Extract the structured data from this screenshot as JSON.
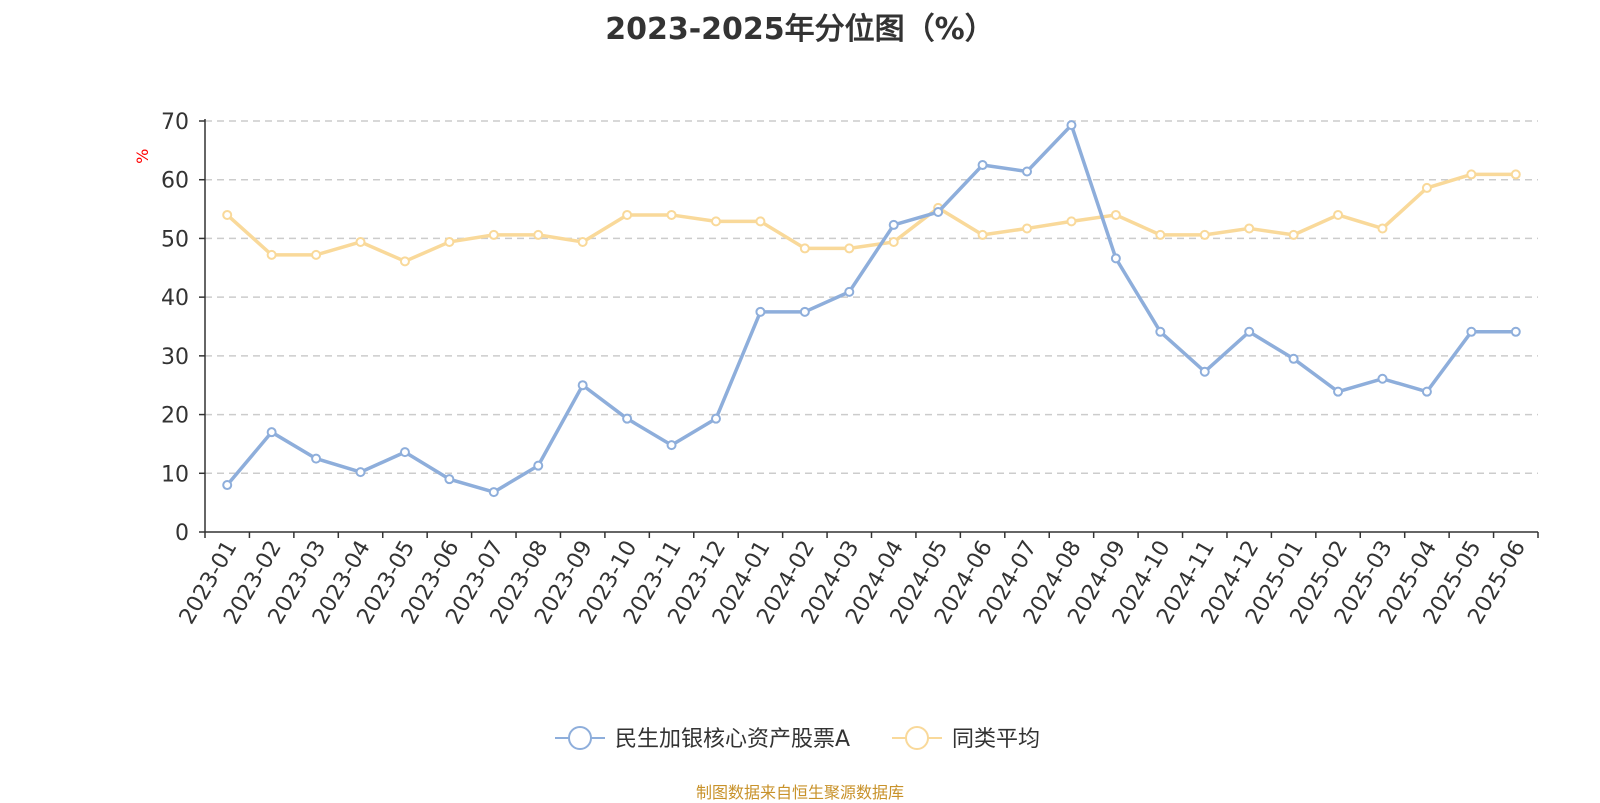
{
  "chart_data": {
    "type": "line",
    "title": "2023-2025年分位图（%）",
    "ylabel": "%",
    "ylim": [
      0,
      70
    ],
    "yticks": [
      0,
      10,
      20,
      30,
      40,
      50,
      60,
      70
    ],
    "grid": true,
    "legend_position": "bottom",
    "categories": [
      "2023-01",
      "2023-02",
      "2023-03",
      "2023-04",
      "2023-05",
      "2023-06",
      "2023-07",
      "2023-08",
      "2023-09",
      "2023-10",
      "2023-11",
      "2023-12",
      "2024-01",
      "2024-02",
      "2024-03",
      "2024-04",
      "2024-05",
      "2024-06",
      "2024-07",
      "2024-08",
      "2024-09",
      "2024-10",
      "2024-11",
      "2024-12",
      "2025-01",
      "2025-02",
      "2025-03",
      "2025-04",
      "2025-05",
      "2025-06"
    ],
    "series": [
      {
        "name": "民生加银核心资产股票A",
        "color": "#8eaedb",
        "values": [
          8.0,
          17.0,
          12.5,
          10.2,
          13.6,
          9.0,
          6.8,
          11.3,
          25.0,
          19.3,
          14.8,
          19.3,
          37.5,
          37.5,
          40.9,
          52.3,
          54.5,
          62.5,
          61.4,
          69.3,
          46.6,
          34.1,
          27.3,
          34.1,
          29.5,
          23.9,
          26.1,
          23.9,
          34.1,
          34.1
        ]
      },
      {
        "name": "同类平均",
        "color": "#f9d99a",
        "values": [
          54.0,
          47.2,
          47.2,
          49.4,
          46.1,
          49.4,
          50.6,
          50.6,
          49.4,
          54.0,
          54.0,
          52.9,
          52.9,
          48.3,
          48.3,
          49.4,
          55.2,
          50.6,
          51.7,
          52.9,
          54.0,
          50.6,
          50.6,
          51.7,
          50.6,
          54.0,
          51.7,
          58.6,
          60.9,
          60.9
        ]
      }
    ]
  },
  "source": "制图数据来自恒生聚源数据库"
}
